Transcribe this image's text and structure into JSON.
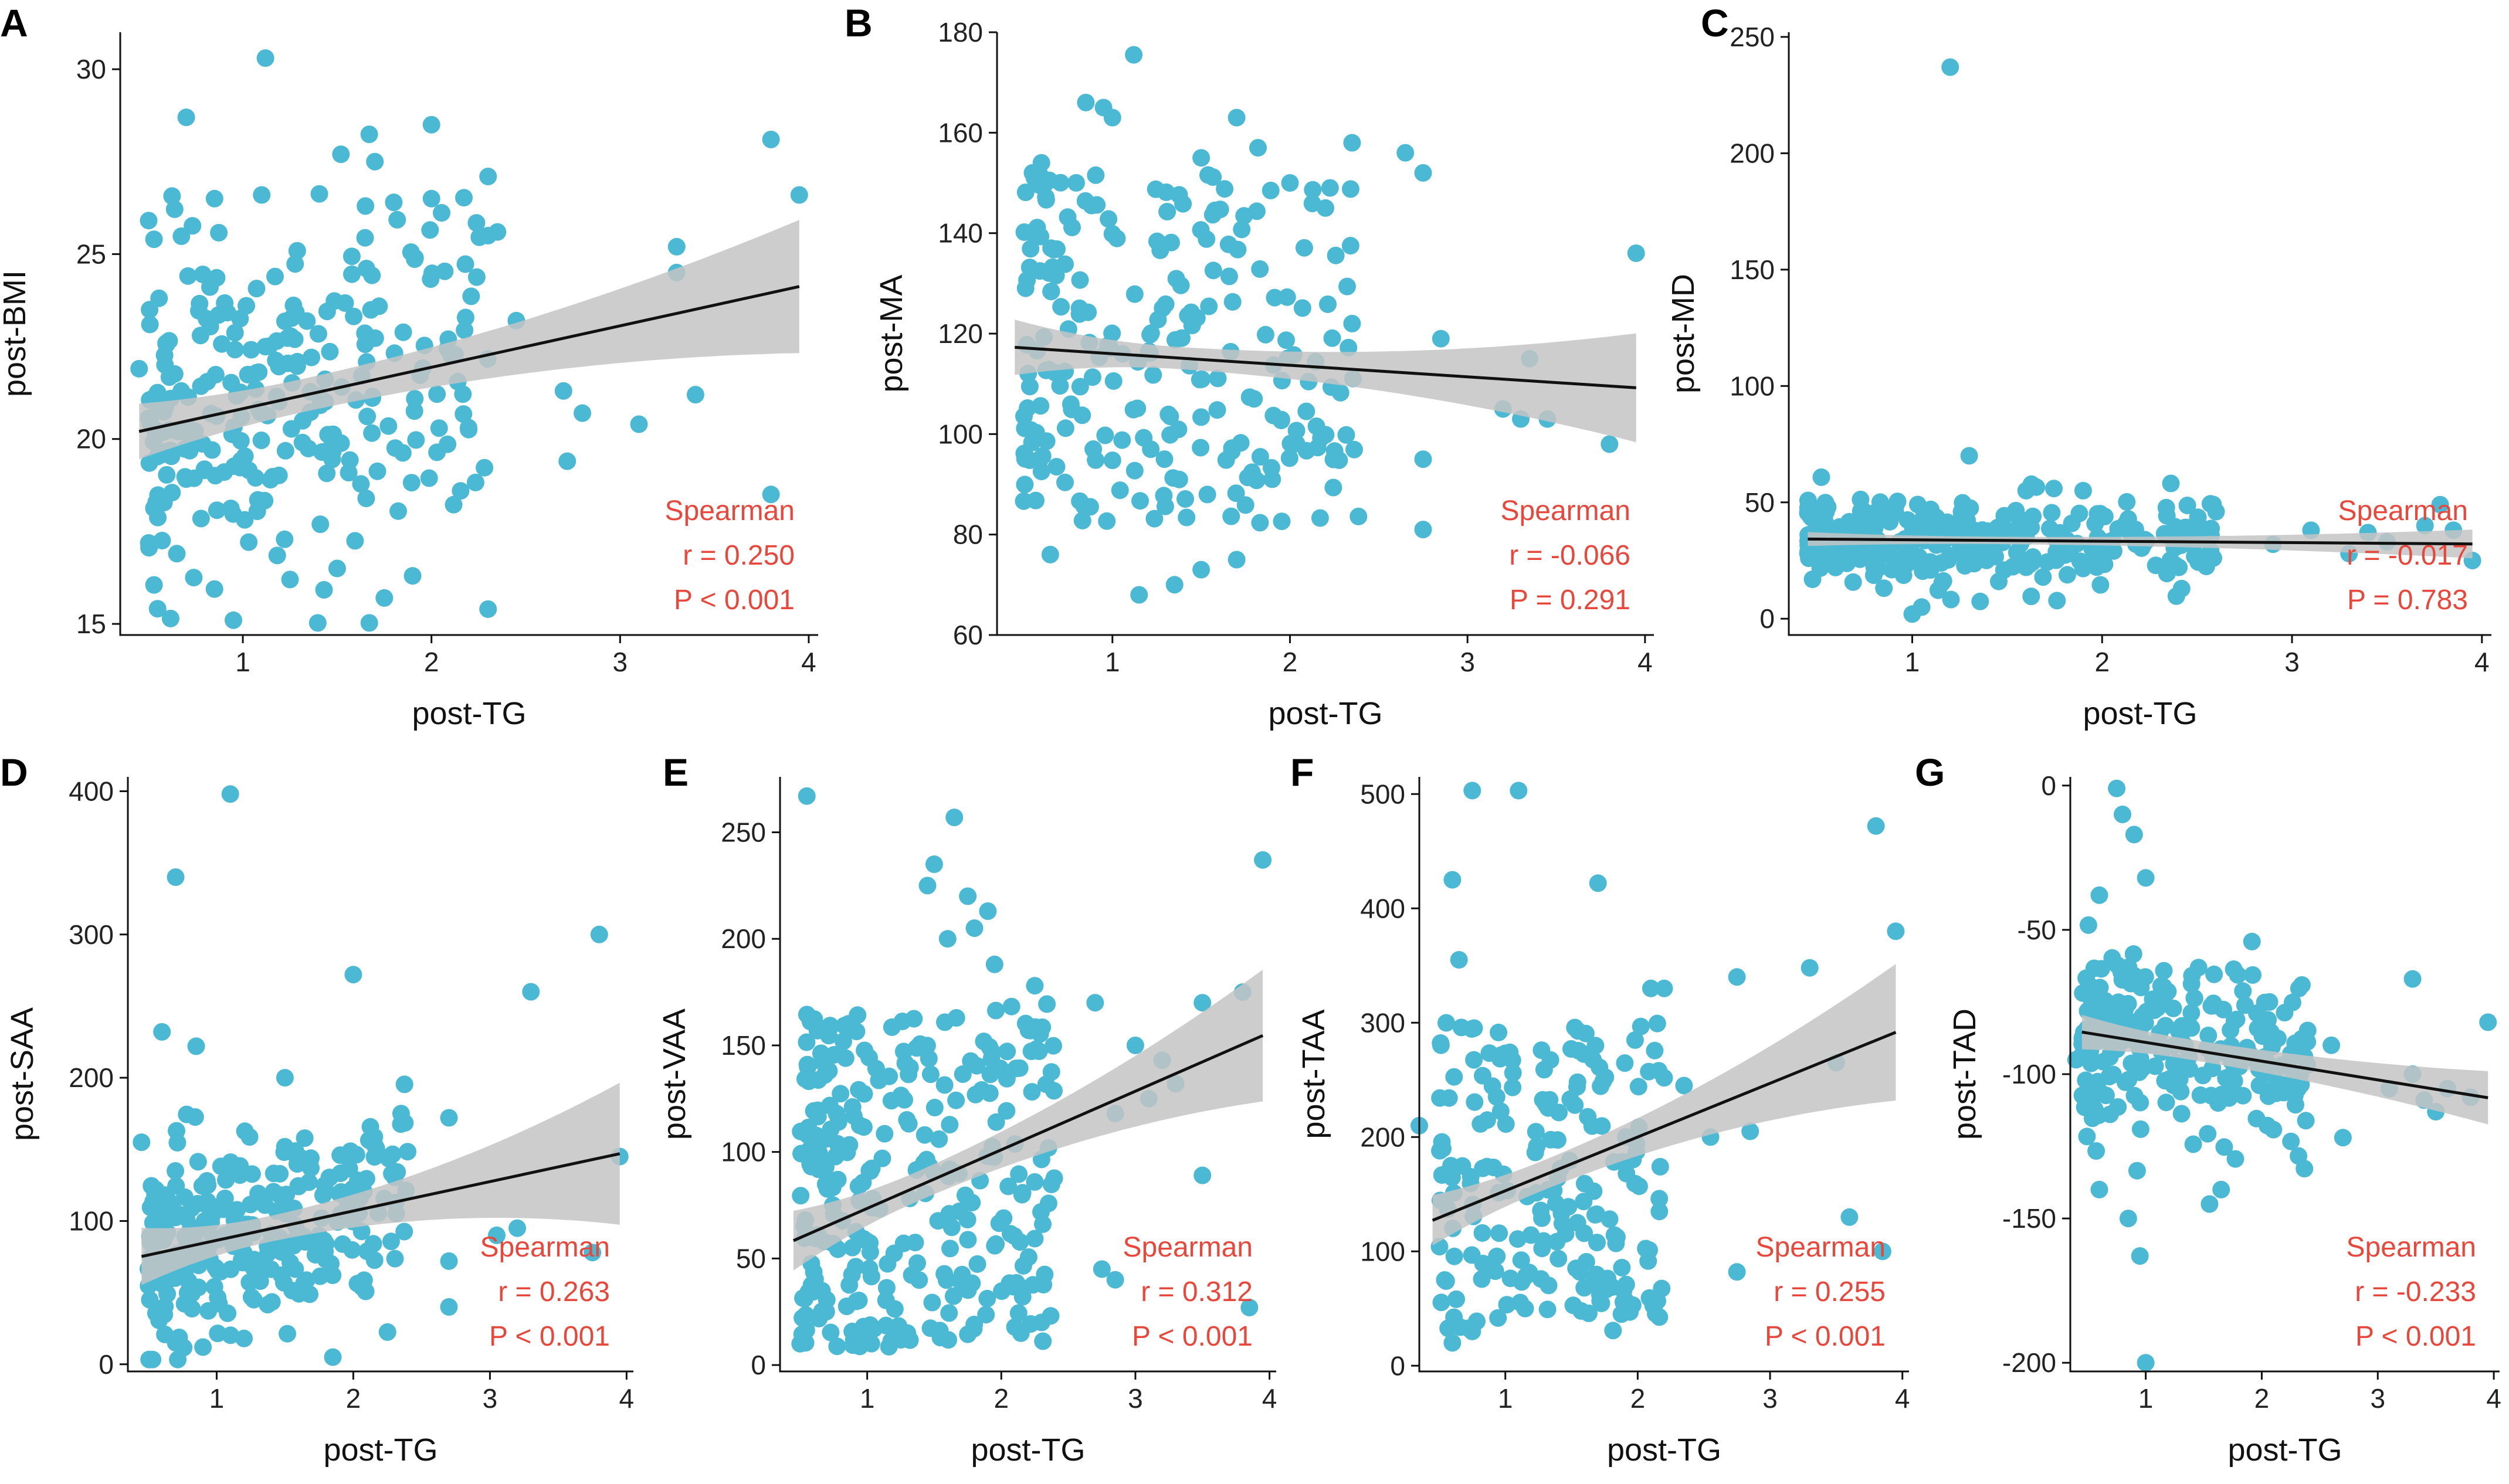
{
  "figure": {
    "point_color": "#4bb9d3",
    "band_color": "#c4c4c4",
    "line_color": "#111111",
    "stat_color": "#e8473c"
  },
  "chart_data": [
    {
      "panel": "A",
      "type": "scatter",
      "xlabel": "post-TG",
      "ylabel": "post-BMI",
      "xlim": [
        0.35,
        4.05
      ],
      "ylim": [
        14.7,
        31.0
      ],
      "xticks": [
        1,
        2,
        3,
        4
      ],
      "yticks": [
        15,
        20,
        25,
        30
      ],
      "fit": {
        "slope": 1.12,
        "intercept": 19.7,
        "band": [
          0.75,
          0.45,
          1.75
        ]
      },
      "stats": {
        "method": "Spearman",
        "r": "r = 0.250",
        "p": "P < 0.001"
      },
      "cloud": {
        "n": 260,
        "xmin": 0.5,
        "xmax": 2.3,
        "xpow": 1.5,
        "yfit": true,
        "ysd": 2.3,
        "seed": 11
      },
      "points": [
        [
          1.12,
          30.3
        ],
        [
          0.7,
          28.7
        ],
        [
          2.0,
          28.5
        ],
        [
          3.8,
          28.1
        ],
        [
          1.52,
          27.7
        ],
        [
          1.7,
          27.5
        ],
        [
          2.3,
          27.1
        ],
        [
          3.95,
          26.6
        ],
        [
          0.85,
          26.5
        ],
        [
          1.1,
          26.6
        ],
        [
          1.65,
          26.3
        ],
        [
          1.8,
          26.4
        ],
        [
          2.0,
          26.5
        ],
        [
          3.3,
          25.2
        ],
        [
          3.3,
          24.5
        ],
        [
          2.3,
          25.5
        ],
        [
          2.35,
          25.6
        ],
        [
          0.45,
          21.9
        ],
        [
          3.1,
          20.4
        ],
        [
          3.4,
          21.2
        ],
        [
          2.8,
          20.7
        ],
        [
          2.72,
          19.4
        ],
        [
          3.8,
          18.5
        ],
        [
          1.9,
          16.3
        ],
        [
          2.3,
          15.4
        ],
        [
          0.95,
          15.1
        ],
        [
          1.25,
          16.2
        ],
        [
          1.5,
          16.5
        ],
        [
          0.65,
          16.9
        ],
        [
          2.45,
          23.2
        ],
        [
          2.7,
          21.3
        ],
        [
          1.75,
          15.7
        ]
      ]
    },
    {
      "panel": "B",
      "type": "scatter",
      "xlabel": "post-TG",
      "ylabel": "post-MA",
      "xlim": [
        0.35,
        4.05
      ],
      "ylim": [
        60,
        180
      ],
      "xticks": [
        1,
        2,
        3,
        4
      ],
      "yticks": [
        60,
        80,
        100,
        120,
        140,
        160,
        180
      ],
      "fit": {
        "slope": -2.3,
        "intercept": 118.3,
        "band": [
          5.5,
          2.2,
          10.5
        ]
      },
      "stats": {
        "method": "Spearman",
        "r": "r = -0.066",
        "p": "P = 0.291"
      },
      "cloud": {
        "n": 230,
        "xmin": 0.5,
        "xmax": 2.4,
        "xpow": 1.4,
        "yfit": false,
        "ymin": 82,
        "ymax": 152,
        "seed": 23
      },
      "points": [
        [
          1.12,
          175.5
        ],
        [
          0.85,
          166
        ],
        [
          0.95,
          165
        ],
        [
          1.0,
          163
        ],
        [
          1.7,
          163
        ],
        [
          2.35,
          158
        ],
        [
          0.6,
          154
        ],
        [
          0.55,
          152
        ],
        [
          1.5,
          155
        ],
        [
          2.65,
          156
        ],
        [
          2.75,
          152
        ],
        [
          2.2,
          145
        ],
        [
          1.82,
          157
        ],
        [
          2.0,
          150
        ],
        [
          3.95,
          136
        ],
        [
          2.35,
          122
        ],
        [
          2.85,
          119
        ],
        [
          3.35,
          115
        ],
        [
          3.8,
          98
        ],
        [
          3.45,
          103
        ],
        [
          3.3,
          103
        ],
        [
          3.2,
          105
        ],
        [
          2.75,
          95
        ],
        [
          2.75,
          81
        ],
        [
          1.15,
          68
        ],
        [
          1.35,
          70
        ],
        [
          1.5,
          73
        ],
        [
          0.65,
          76
        ],
        [
          1.7,
          75
        ],
        [
          1.9,
          91
        ]
      ]
    },
    {
      "panel": "C",
      "type": "scatter",
      "xlabel": "post-TG",
      "ylabel": "post-MD",
      "xlim": [
        0.35,
        4.05
      ],
      "ylim": [
        -7,
        252
      ],
      "xticks": [
        1,
        2,
        3,
        4
      ],
      "yticks": [
        0,
        50,
        100,
        150,
        200,
        250
      ],
      "fit": {
        "slope": -0.6,
        "intercept": 34.5,
        "band": [
          3.0,
          1.6,
          6.0
        ]
      },
      "stats": {
        "method": "Spearman",
        "r": "r = -0.017",
        "p": "P = 0.783"
      },
      "cloud": {
        "n": 290,
        "xmin": 0.45,
        "xmax": 2.6,
        "xpow": 1.5,
        "yfit": true,
        "ysd": 9.5,
        "seed": 37
      },
      "points": [
        [
          1.2,
          237
        ],
        [
          1.3,
          70
        ],
        [
          3.78,
          49
        ],
        [
          3.4,
          37
        ],
        [
          3.5,
          33
        ],
        [
          3.85,
          38
        ],
        [
          3.95,
          25
        ],
        [
          2.9,
          32
        ],
        [
          3.1,
          38
        ],
        [
          3.3,
          28
        ],
        [
          3.7,
          40
        ],
        [
          1.0,
          2
        ],
        [
          1.05,
          5
        ],
        [
          0.8,
          22
        ],
        [
          1.6,
          55
        ],
        [
          1.9,
          55
        ],
        [
          2.6,
          46
        ]
      ]
    },
    {
      "panel": "D",
      "type": "scatter",
      "xlabel": "post-TG",
      "ylabel": "post-SAA",
      "xlim": [
        0.35,
        4.05
      ],
      "ylim": [
        -5,
        410
      ],
      "xticks": [
        1,
        2,
        3,
        4
      ],
      "yticks": [
        0,
        100,
        200,
        300,
        400
      ],
      "fit": {
        "slope": 20.5,
        "intercept": 66,
        "band": [
          20,
          9,
          48
        ]
      },
      "stats": {
        "method": "Spearman",
        "r": "r = 0.263",
        "p": "P < 0.001"
      },
      "cloud": {
        "n": 280,
        "xmin": 0.5,
        "xmax": 2.4,
        "xpow": 1.5,
        "yfit": true,
        "ysd": 35,
        "seed": 41
      },
      "points": [
        [
          1.1,
          398
        ],
        [
          0.7,
          340
        ],
        [
          0.6,
          232
        ],
        [
          0.85,
          222
        ],
        [
          2.0,
          272
        ],
        [
          3.3,
          260
        ],
        [
          3.8,
          300
        ],
        [
          2.7,
          172
        ],
        [
          1.5,
          200
        ],
        [
          2.35,
          175
        ],
        [
          3.2,
          95
        ],
        [
          3.05,
          90
        ],
        [
          2.7,
          72
        ],
        [
          3.95,
          145
        ],
        [
          3.75,
          78
        ],
        [
          0.45,
          155
        ],
        [
          0.7,
          15
        ],
        [
          0.9,
          12
        ],
        [
          1.2,
          18
        ],
        [
          1.85,
          5
        ],
        [
          2.7,
          40
        ]
      ]
    },
    {
      "panel": "E",
      "type": "scatter",
      "xlabel": "post-TG",
      "ylabel": "post-VAA",
      "xlim": [
        0.35,
        4.05
      ],
      "ylim": [
        -3,
        276
      ],
      "xticks": [
        1,
        2,
        3,
        4
      ],
      "yticks": [
        0,
        50,
        100,
        150,
        200,
        250
      ],
      "fit": {
        "slope": 27.5,
        "intercept": 46,
        "band": [
          14,
          7,
          30
        ]
      },
      "stats": {
        "method": "Spearman",
        "r": "r = 0.312",
        "p": "P < 0.001"
      },
      "cloud": {
        "n": 300,
        "xmin": 0.5,
        "xmax": 2.4,
        "xpow": 1.3,
        "yfit": false,
        "ymin": 8,
        "ymax": 170,
        "seed": 53
      },
      "points": [
        [
          0.55,
          267
        ],
        [
          1.65,
          257
        ],
        [
          1.5,
          235
        ],
        [
          1.45,
          225
        ],
        [
          1.75,
          220
        ],
        [
          1.9,
          213
        ],
        [
          1.8,
          205
        ],
        [
          1.6,
          200
        ],
        [
          1.95,
          188
        ],
        [
          2.25,
          178
        ],
        [
          2.7,
          170
        ],
        [
          3.8,
          175
        ],
        [
          3.95,
          237
        ],
        [
          3.5,
          170
        ],
        [
          3.0,
          150
        ],
        [
          3.2,
          143
        ],
        [
          3.3,
          132
        ],
        [
          3.1,
          125
        ],
        [
          2.85,
          118
        ],
        [
          3.5,
          89
        ],
        [
          2.75,
          45
        ],
        [
          2.85,
          40
        ],
        [
          3.85,
          27
        ],
        [
          2.3,
          20
        ],
        [
          0.9,
          12
        ],
        [
          1.3,
          15
        ],
        [
          0.5,
          10
        ]
      ]
    },
    {
      "panel": "F",
      "type": "scatter",
      "xlabel": "post-TG",
      "ylabel": "post-TAA",
      "xlim": [
        0.35,
        4.05
      ],
      "ylim": [
        -5,
        515
      ],
      "xticks": [
        1,
        2,
        3,
        4
      ],
      "yticks": [
        0,
        100,
        200,
        300,
        400,
        500
      ],
      "fit": {
        "slope": 47,
        "intercept": 106,
        "band": [
          22,
          13,
          58
        ]
      },
      "stats": {
        "method": "Spearman",
        "r": "r = 0.255",
        "p": "P < 0.001"
      },
      "cloud": {
        "n": 200,
        "xmin": 0.5,
        "xmax": 2.2,
        "xpow": 1.2,
        "yfit": false,
        "ymin": 30,
        "ymax": 300,
        "seed": 67
      },
      "points": [
        [
          0.75,
          503
        ],
        [
          1.1,
          503
        ],
        [
          0.6,
          425
        ],
        [
          1.7,
          422
        ],
        [
          0.65,
          355
        ],
        [
          3.8,
          472
        ],
        [
          3.95,
          380
        ],
        [
          3.3,
          348
        ],
        [
          2.75,
          340
        ],
        [
          2.35,
          245
        ],
        [
          2.55,
          200
        ],
        [
          2.85,
          205
        ],
        [
          3.5,
          265
        ],
        [
          3.6,
          130
        ],
        [
          3.85,
          100
        ],
        [
          2.75,
          82
        ],
        [
          0.6,
          20
        ],
        [
          0.75,
          30
        ],
        [
          1.15,
          50
        ],
        [
          0.35,
          210
        ],
        [
          2.1,
          330
        ],
        [
          2.2,
          330
        ]
      ]
    },
    {
      "panel": "G",
      "type": "scatter",
      "xlabel": "post-TG",
      "ylabel": "post-TAD",
      "xlim": [
        0.35,
        4.05
      ],
      "ylim": [
        -203,
        3
      ],
      "xticks": [
        1,
        2,
        3,
        4
      ],
      "yticks": [
        0,
        -50,
        -100,
        -150,
        -200
      ],
      "fit": {
        "slope": -6.5,
        "intercept": -82.5,
        "band": [
          6,
          3.5,
          9
        ]
      },
      "stats": {
        "method": "Spearman",
        "r": "r = -0.233",
        "p": "P < 0.001"
      },
      "cloud": {
        "n": 260,
        "xmin": 0.45,
        "xmax": 2.4,
        "xpow": 1.4,
        "yfit": true,
        "ysd": 16,
        "seed": 79
      },
      "points": [
        [
          0.75,
          -1
        ],
        [
          0.8,
          -10
        ],
        [
          0.9,
          -17
        ],
        [
          1.0,
          -32
        ],
        [
          0.6,
          -38
        ],
        [
          1.0,
          -200
        ],
        [
          0.95,
          -163
        ],
        [
          0.85,
          -150
        ],
        [
          0.6,
          -140
        ],
        [
          1.65,
          -140
        ],
        [
          1.55,
          -145
        ],
        [
          2.7,
          -122
        ],
        [
          3.3,
          -67
        ],
        [
          3.95,
          -82
        ],
        [
          3.5,
          -113
        ],
        [
          3.4,
          -109
        ],
        [
          3.1,
          -105
        ],
        [
          3.6,
          -105
        ],
        [
          3.8,
          -108
        ],
        [
          3.3,
          -100
        ],
        [
          2.6,
          -90
        ],
        [
          2.25,
          -93
        ],
        [
          0.4,
          -95
        ]
      ]
    }
  ]
}
